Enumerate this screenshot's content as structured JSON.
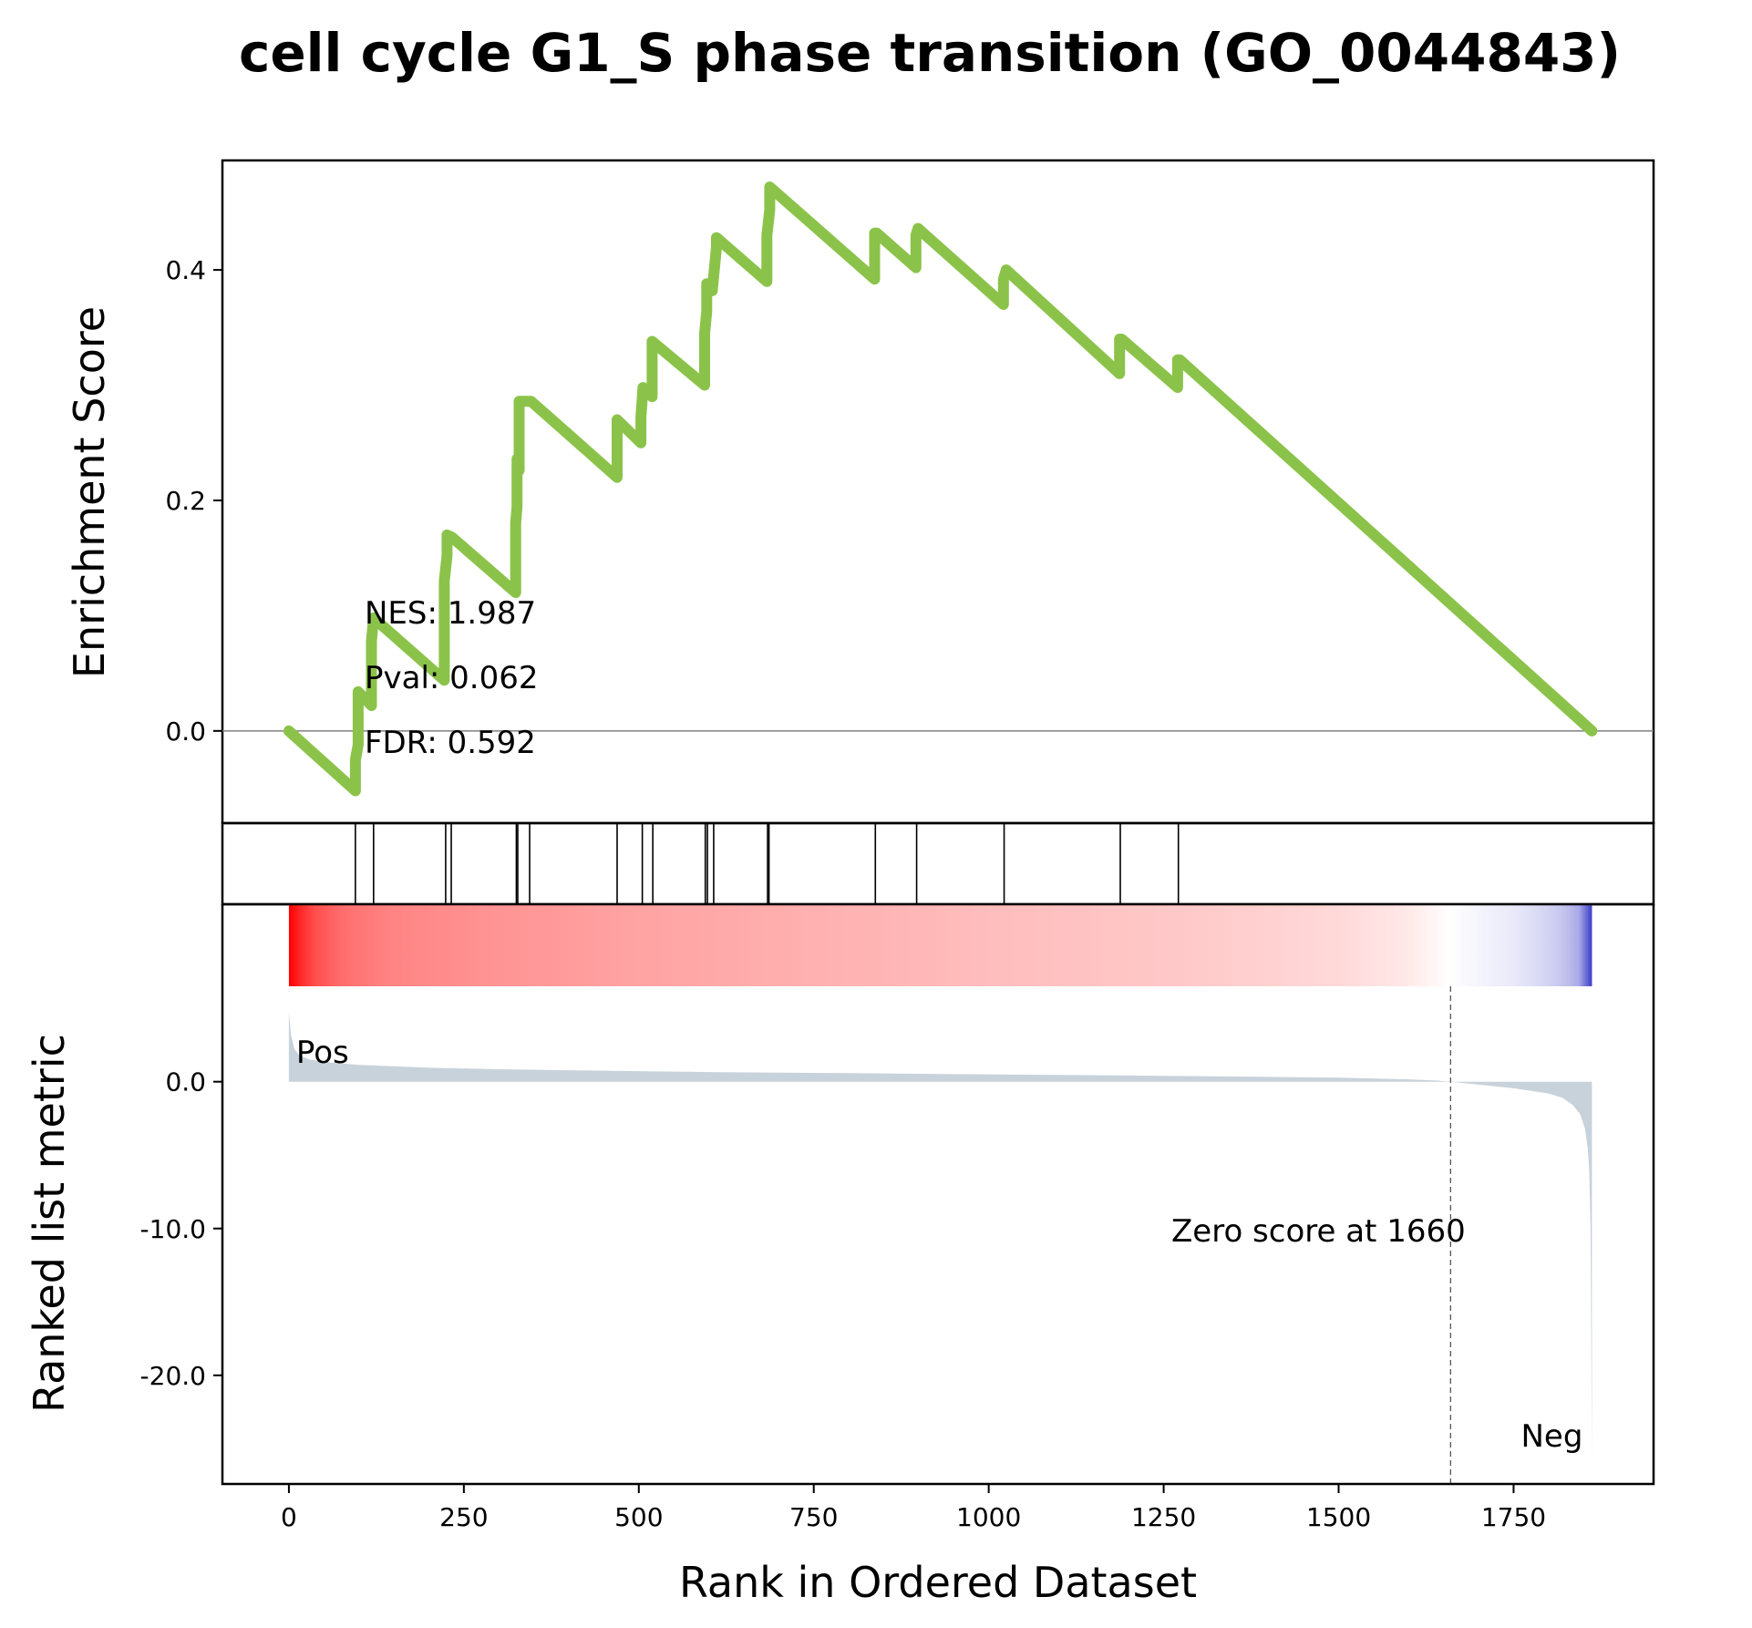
{
  "chart_data": {
    "type": "line",
    "title": "cell cycle G1_S phase transition (GO_0044843)",
    "xlabel": "Rank in Ordered Dataset",
    "xlim": [
      -95,
      1950
    ],
    "x_ticks": [
      0,
      250,
      500,
      750,
      1000,
      1250,
      1500,
      1750
    ],
    "enrichment_panel": {
      "ylabel": "Enrichment Score",
      "ylim": [
        -0.08,
        0.495
      ],
      "y_ticks": [
        0.0,
        0.2,
        0.4
      ],
      "y_tick_labels": [
        "0.0",
        "0.2",
        "0.4"
      ],
      "line_color": "#8bc34a",
      "baseline_color": "#808080",
      "series": {
        "x": [
          0,
          95,
          95,
          99,
          99,
          118,
          118,
          121,
          121,
          222,
          222,
          226,
          226,
          233,
          233,
          324,
          324,
          326,
          326,
          329,
          329,
          346,
          346,
          469,
          469,
          503,
          503,
          506,
          506,
          519,
          519,
          594,
          594,
          597,
          597,
          605,
          605,
          611,
          611,
          683,
          683,
          687,
          687,
          837,
          837,
          840,
          840,
          896,
          896,
          899,
          899,
          1021,
          1021,
          1025,
          1025,
          1187,
          1187,
          1190,
          1190,
          1270,
          1270,
          1273,
          1273,
          1862
        ],
        "y": [
          0.0,
          -0.052,
          -0.025,
          -0.012,
          0.034,
          0.022,
          0.078,
          0.098,
          0.098,
          0.044,
          0.13,
          0.152,
          0.17,
          0.168,
          0.168,
          0.12,
          0.18,
          0.195,
          0.236,
          0.226,
          0.286,
          0.286,
          0.286,
          0.22,
          0.27,
          0.25,
          0.272,
          0.298,
          0.298,
          0.29,
          0.338,
          0.3,
          0.345,
          0.364,
          0.388,
          0.382,
          0.382,
          0.42,
          0.428,
          0.39,
          0.43,
          0.452,
          0.472,
          0.392,
          0.432,
          0.432,
          0.432,
          0.402,
          0.43,
          0.436,
          0.436,
          0.37,
          0.392,
          0.4,
          0.4,
          0.31,
          0.34,
          0.34,
          0.34,
          0.298,
          0.322,
          0.322,
          0.322,
          0.0
        ]
      },
      "stats": {
        "nes": "NES: 1.987",
        "pval": "Pval: 0.062",
        "fdr": "FDR: 0.592"
      }
    },
    "hits_panel": {
      "hit_ranks": [
        95,
        121,
        224,
        232,
        325,
        327,
        344,
        469,
        505,
        520,
        595,
        598,
        607,
        684,
        686,
        838,
        897,
        1022,
        1188,
        1271
      ],
      "line_color": "#000000"
    },
    "metric_panel": {
      "ylabel": "Ranked list metric",
      "ylim": [
        -27.4,
        6.5
      ],
      "y_ticks": [
        0,
        -10,
        -20
      ],
      "y_tick_labels": [
        "0.0",
        "-10.0",
        "-20.0"
      ],
      "n_genes": 1862,
      "zero_cross": 1660,
      "zero_label": "Zero score at 1660",
      "pos_label": "Pos",
      "neg_label": "Neg",
      "pos_color": "#ff0000",
      "neg_color": "#0000ff",
      "fill_color": "#c8d2db",
      "metric_profile": {
        "rank": [
          0,
          3,
          8,
          15,
          30,
          60,
          100,
          150,
          200,
          300,
          400,
          500,
          600,
          700,
          800,
          900,
          1000,
          1100,
          1200,
          1300,
          1400,
          1500,
          1600,
          1640,
          1660,
          1700,
          1750,
          1800,
          1820,
          1835,
          1845,
          1852,
          1856,
          1858,
          1860,
          1861,
          1862
        ],
        "value": [
          4.8,
          3.2,
          2.2,
          1.8,
          1.5,
          1.3,
          1.15,
          1.05,
          0.95,
          0.85,
          0.78,
          0.72,
          0.66,
          0.62,
          0.58,
          0.54,
          0.5,
          0.46,
          0.42,
          0.38,
          0.33,
          0.27,
          0.16,
          0.08,
          0.0,
          -0.2,
          -0.45,
          -0.8,
          -1.1,
          -1.6,
          -2.2,
          -3.2,
          -4.5,
          -6.0,
          -10.0,
          -18.0,
          -26.0
        ]
      },
      "heatmap_profile": {
        "rank": [
          0,
          10,
          30,
          80,
          150,
          300,
          500,
          700,
          1000,
          1300,
          1500,
          1600,
          1660,
          1700,
          1750,
          1800,
          1840,
          1855,
          1862
        ],
        "intensity": [
          1.0,
          0.9,
          0.72,
          0.56,
          0.48,
          0.42,
          0.36,
          0.32,
          0.26,
          0.21,
          0.15,
          0.09,
          0.0,
          -0.05,
          -0.1,
          -0.2,
          -0.35,
          -0.55,
          -0.9
        ]
      }
    }
  }
}
